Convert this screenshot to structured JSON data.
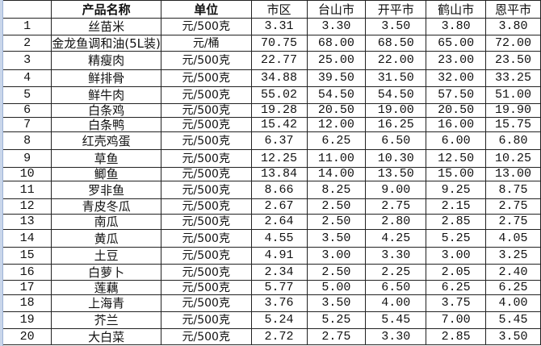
{
  "headers": {
    "index": "",
    "name": "产品名称",
    "unit": "单位",
    "cities": [
      "市区",
      "台山市",
      "开平市",
      "鹤山市",
      "恩平市"
    ]
  },
  "rows": [
    {
      "no": "1",
      "name": "丝苗米",
      "unit": "元/500克",
      "prices": [
        "3.31",
        "3.30",
        "3.50",
        "3.80",
        "3.80"
      ]
    },
    {
      "no": "2",
      "name": "金龙鱼调和油(5L装)",
      "unit": "元/桶",
      "prices": [
        "70.75",
        "68.00",
        "68.50",
        "65.00",
        "72.00"
      ]
    },
    {
      "no": "3",
      "name": "精瘦肉",
      "unit": "元/500克",
      "prices": [
        "22.77",
        "25.00",
        "22.00",
        "23.00",
        "23.50"
      ]
    },
    {
      "no": "4",
      "name": "鲜排骨",
      "unit": "元/500克",
      "prices": [
        "34.88",
        "39.50",
        "31.50",
        "32.00",
        "33.25"
      ]
    },
    {
      "no": "5",
      "name": "鲜牛肉",
      "unit": "元/500克",
      "prices": [
        "55.02",
        "54.50",
        "54.50",
        "57.50",
        "51.00"
      ]
    },
    {
      "no": "6",
      "name": "白条鸡",
      "unit": "元/500克",
      "prices": [
        "19.28",
        "20.50",
        "19.00",
        "20.50",
        "19.90"
      ]
    },
    {
      "no": "7",
      "name": "白条鸭",
      "unit": "元/500克",
      "prices": [
        "15.42",
        "12.00",
        "16.25",
        "16.00",
        "15.75"
      ]
    },
    {
      "no": "8",
      "name": "红壳鸡蛋",
      "unit": "元/500克",
      "prices": [
        "6.37",
        "6.25",
        "6.50",
        "6.00",
        "6.80"
      ]
    },
    {
      "no": "9",
      "name": "草鱼",
      "unit": "元/500克",
      "prices": [
        "12.25",
        "11.00",
        "10.30",
        "12.50",
        "10.25"
      ]
    },
    {
      "no": "10",
      "name": "鲫鱼",
      "unit": "元/500克",
      "prices": [
        "13.84",
        "14.00",
        "13.50",
        "15.00",
        "13.00"
      ]
    },
    {
      "no": "11",
      "name": "罗非鱼",
      "unit": "元/500克",
      "prices": [
        "8.66",
        "8.25",
        "9.00",
        "9.25",
        "8.75"
      ]
    },
    {
      "no": "12",
      "name": "青皮冬瓜",
      "unit": "元/500克",
      "prices": [
        "2.67",
        "2.50",
        "2.75",
        "2.15",
        "2.75"
      ]
    },
    {
      "no": "13",
      "name": "南瓜",
      "unit": "元/500克",
      "prices": [
        "2.64",
        "2.50",
        "2.80",
        "2.85",
        "2.75"
      ]
    },
    {
      "no": "14",
      "name": "黄瓜",
      "unit": "元/500克",
      "prices": [
        "4.55",
        "3.50",
        "4.25",
        "5.25",
        "4.05"
      ]
    },
    {
      "no": "15",
      "name": "土豆",
      "unit": "元/500克",
      "prices": [
        "4.91",
        "3.00",
        "3.30",
        "3.00",
        "3.25"
      ]
    },
    {
      "no": "16",
      "name": "白萝卜",
      "unit": "元/500克",
      "prices": [
        "2.34",
        "2.50",
        "2.25",
        "2.05",
        "2.40"
      ]
    },
    {
      "no": "17",
      "name": "莲藕",
      "unit": "元/500克",
      "prices": [
        "5.77",
        "5.00",
        "6.50",
        "6.25",
        "6.25"
      ]
    },
    {
      "no": "18",
      "name": "上海青",
      "unit": "元/500克",
      "prices": [
        "3.76",
        "3.50",
        "4.00",
        "3.75",
        "4.00"
      ]
    },
    {
      "no": "19",
      "name": "芥兰",
      "unit": "元/500克",
      "prices": [
        "5.24",
        "5.25",
        "5.45",
        "7.00",
        "5.45"
      ]
    },
    {
      "no": "20",
      "name": "大白菜",
      "unit": "元/500克",
      "prices": [
        "2.72",
        "2.75",
        "3.30",
        "2.85",
        "3.50"
      ]
    }
  ]
}
